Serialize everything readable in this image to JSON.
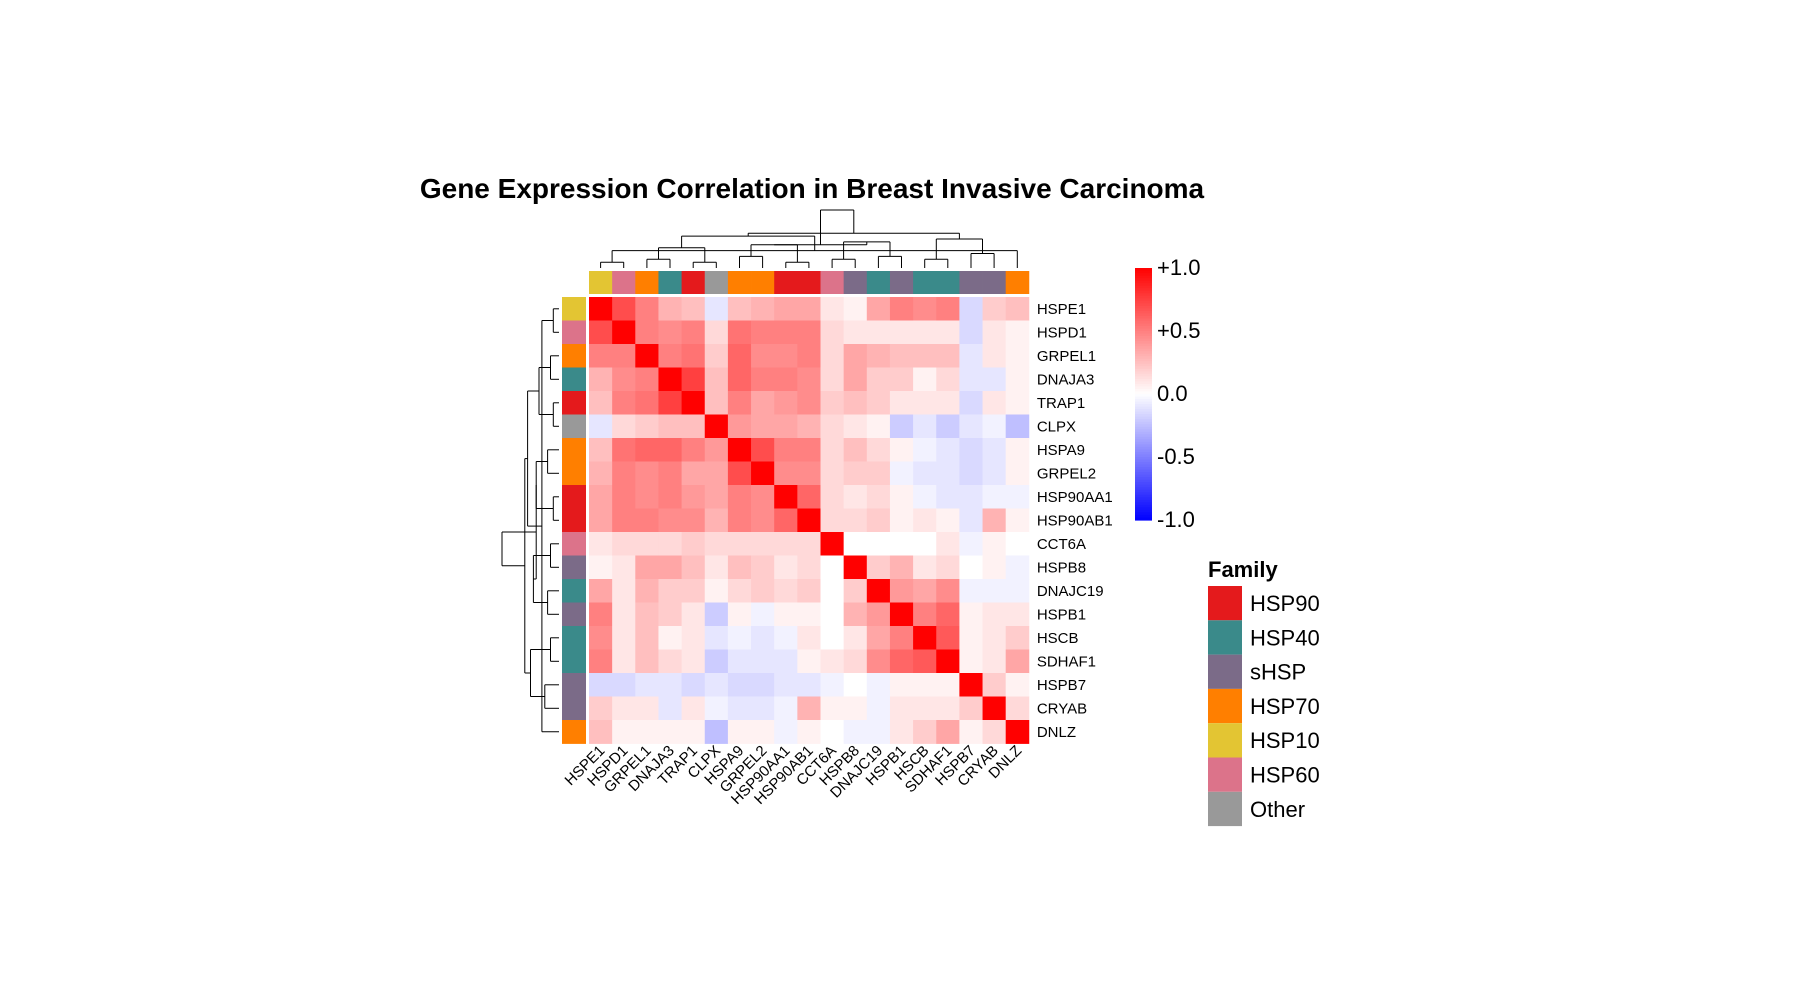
{
  "chart_data": {
    "type": "heatmap",
    "title": "Gene Expression Correlation in Breast Invasive Carcinoma",
    "genes": [
      "HSPE1",
      "HSPD1",
      "GRPEL1",
      "DNAJA3",
      "TRAP1",
      "CLPX",
      "HSPA9",
      "GRPEL2",
      "HSP90AA1",
      "HSP90AB1",
      "CCT6A",
      "HSPB8",
      "DNAJC19",
      "HSPB1",
      "HSCB",
      "SDHAF1",
      "HSPB7",
      "CRYAB",
      "DNLZ"
    ],
    "gene_family": [
      "HSP10",
      "HSP60",
      "HSP70",
      "HSP40",
      "HSP90",
      "Other",
      "HSP70",
      "HSP70",
      "HSP90",
      "HSP90",
      "HSP60",
      "sHSP",
      "HSP40",
      "sHSP",
      "HSP40",
      "HSP40",
      "sHSP",
      "sHSP",
      "HSP70"
    ],
    "values": [
      [
        1.0,
        0.7,
        0.5,
        0.3,
        0.25,
        -0.1,
        0.25,
        0.3,
        0.35,
        0.35,
        0.1,
        0.05,
        0.35,
        0.5,
        0.45,
        0.5,
        -0.15,
        0.2,
        0.25
      ],
      [
        0.7,
        1.0,
        0.5,
        0.45,
        0.5,
        0.15,
        0.55,
        0.5,
        0.5,
        0.5,
        0.15,
        0.1,
        0.1,
        0.1,
        0.1,
        0.1,
        -0.15,
        0.1,
        0.05
      ],
      [
        0.5,
        0.5,
        1.0,
        0.5,
        0.55,
        0.2,
        0.6,
        0.45,
        0.45,
        0.5,
        0.15,
        0.35,
        0.3,
        0.25,
        0.25,
        0.25,
        -0.1,
        0.1,
        0.05
      ],
      [
        0.3,
        0.45,
        0.5,
        1.0,
        0.75,
        0.25,
        0.6,
        0.5,
        0.5,
        0.45,
        0.15,
        0.35,
        0.2,
        0.2,
        0.05,
        0.15,
        -0.1,
        -0.1,
        0.05
      ],
      [
        0.25,
        0.5,
        0.55,
        0.75,
        1.0,
        0.25,
        0.5,
        0.35,
        0.4,
        0.45,
        0.2,
        0.25,
        0.2,
        0.1,
        0.1,
        0.1,
        -0.15,
        0.1,
        0.05
      ],
      [
        -0.1,
        0.15,
        0.2,
        0.25,
        0.25,
        1.0,
        0.4,
        0.35,
        0.35,
        0.3,
        0.15,
        0.1,
        0.05,
        -0.2,
        -0.1,
        -0.2,
        -0.1,
        -0.05,
        -0.25
      ],
      [
        0.25,
        0.55,
        0.6,
        0.6,
        0.5,
        0.4,
        1.0,
        0.7,
        0.5,
        0.5,
        0.15,
        0.25,
        0.15,
        0.05,
        -0.05,
        -0.1,
        -0.15,
        -0.1,
        0.05
      ],
      [
        0.3,
        0.5,
        0.45,
        0.5,
        0.35,
        0.35,
        0.7,
        1.0,
        0.45,
        0.45,
        0.15,
        0.2,
        0.2,
        -0.05,
        -0.1,
        -0.1,
        -0.15,
        -0.1,
        0.05
      ],
      [
        0.35,
        0.5,
        0.45,
        0.5,
        0.4,
        0.35,
        0.5,
        0.45,
        1.0,
        0.6,
        0.15,
        0.1,
        0.15,
        0.05,
        -0.05,
        -0.1,
        -0.1,
        -0.05,
        -0.05
      ],
      [
        0.35,
        0.5,
        0.5,
        0.45,
        0.45,
        0.3,
        0.5,
        0.45,
        0.6,
        1.0,
        0.15,
        0.15,
        0.2,
        0.05,
        0.1,
        0.05,
        -0.1,
        0.3,
        0.05
      ],
      [
        0.1,
        0.15,
        0.15,
        0.15,
        0.2,
        0.15,
        0.15,
        0.15,
        0.15,
        0.15,
        1.0,
        0.0,
        0.0,
        0.0,
        0.0,
        0.1,
        -0.05,
        0.05,
        0.0
      ],
      [
        0.05,
        0.1,
        0.35,
        0.35,
        0.25,
        0.1,
        0.25,
        0.2,
        0.1,
        0.15,
        0.0,
        1.0,
        0.2,
        0.3,
        0.1,
        0.15,
        0.0,
        0.05,
        -0.05
      ],
      [
        0.35,
        0.1,
        0.3,
        0.2,
        0.2,
        0.05,
        0.15,
        0.2,
        0.15,
        0.2,
        0.0,
        0.2,
        1.0,
        0.4,
        0.35,
        0.45,
        -0.05,
        -0.05,
        -0.05
      ],
      [
        0.5,
        0.1,
        0.25,
        0.2,
        0.1,
        -0.2,
        0.05,
        -0.05,
        0.05,
        0.05,
        0.0,
        0.3,
        0.4,
        1.0,
        0.5,
        0.6,
        0.05,
        0.1,
        0.1
      ],
      [
        0.45,
        0.1,
        0.25,
        0.05,
        0.1,
        -0.1,
        -0.05,
        -0.1,
        -0.05,
        0.1,
        0.0,
        0.1,
        0.35,
        0.5,
        1.0,
        0.65,
        0.05,
        0.1,
        0.2
      ],
      [
        0.5,
        0.1,
        0.25,
        0.15,
        0.1,
        -0.2,
        -0.1,
        -0.1,
        -0.1,
        0.05,
        0.1,
        0.15,
        0.45,
        0.6,
        0.65,
        1.0,
        0.05,
        0.1,
        0.35
      ],
      [
        -0.15,
        -0.15,
        -0.1,
        -0.1,
        -0.15,
        -0.1,
        -0.15,
        -0.15,
        -0.1,
        -0.1,
        -0.05,
        0.0,
        -0.05,
        0.05,
        0.05,
        0.05,
        1.0,
        0.2,
        0.05
      ],
      [
        0.2,
        0.1,
        0.1,
        -0.1,
        0.1,
        -0.05,
        -0.1,
        -0.1,
        -0.05,
        0.3,
        0.05,
        0.05,
        -0.05,
        0.1,
        0.1,
        0.1,
        0.2,
        1.0,
        0.15
      ],
      [
        0.25,
        0.05,
        0.05,
        0.05,
        0.05,
        -0.25,
        0.05,
        0.05,
        -0.05,
        0.05,
        0.0,
        -0.05,
        -0.05,
        0.1,
        0.2,
        0.35,
        0.05,
        0.15,
        1.0
      ]
    ],
    "colorbar": {
      "min": -1.0,
      "max": 1.0,
      "ticks": [
        "+1.0",
        "+0.5",
        "0.0",
        "-0.5",
        "-1.0"
      ],
      "low_color": "#0000ff",
      "mid_color": "#ffffff",
      "high_color": "#ff0000"
    },
    "legend": {
      "title": "Family",
      "items": [
        {
          "label": "HSP90",
          "color": "#e41a1c"
        },
        {
          "label": "HSP40",
          "color": "#3a8a8a"
        },
        {
          "label": "sHSP",
          "color": "#7b6b88"
        },
        {
          "label": "HSP70",
          "color": "#ff7f00"
        },
        {
          "label": "HSP10",
          "color": "#e3c533"
        },
        {
          "label": "HSP60",
          "color": "#dc738a"
        },
        {
          "label": "Other",
          "color": "#999999"
        }
      ]
    },
    "column_dendrogram": [
      [
        0,
        1,
        0.1
      ],
      [
        2,
        3,
        0.15
      ],
      [
        4,
        5,
        0.1
      ],
      [
        6,
        7,
        0.2
      ],
      [
        8,
        9,
        0.1
      ],
      [
        10,
        11,
        0.15
      ],
      [
        12,
        13,
        0.2
      ],
      [
        14,
        15,
        0.15
      ],
      [
        16,
        17,
        0.25
      ],
      [
        18,
        19,
        0.3
      ],
      [
        20,
        21,
        0.35
      ],
      [
        22,
        23,
        0.4
      ],
      [
        24,
        25,
        0.45
      ],
      [
        26,
        27,
        0.5
      ],
      [
        28,
        29,
        0.55
      ],
      [
        30,
        31,
        0.4
      ],
      [
        32,
        33,
        0.6
      ],
      [
        34,
        35,
        1.0
      ]
    ],
    "row_dendrogram": [
      [
        0,
        1,
        0.1
      ],
      [
        2,
        3,
        0.15
      ],
      [
        4,
        5,
        0.1
      ],
      [
        6,
        7,
        0.2
      ],
      [
        8,
        9,
        0.1
      ],
      [
        10,
        11,
        0.15
      ],
      [
        12,
        13,
        0.2
      ],
      [
        14,
        15,
        0.15
      ],
      [
        16,
        17,
        0.25
      ],
      [
        18,
        19,
        0.3
      ],
      [
        20,
        21,
        0.35
      ],
      [
        22,
        23,
        0.4
      ],
      [
        24,
        25,
        0.45
      ],
      [
        26,
        27,
        0.5
      ],
      [
        28,
        29,
        0.55
      ],
      [
        30,
        31,
        0.4
      ],
      [
        32,
        33,
        0.6
      ],
      [
        34,
        35,
        1.0
      ]
    ]
  }
}
